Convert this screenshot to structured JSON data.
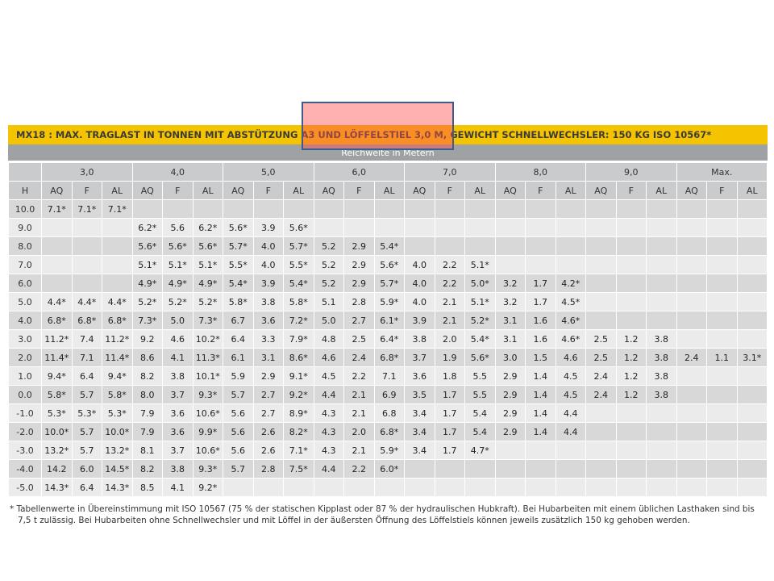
{
  "title": "MX18 : MAX. TRAGLAST IN TONNEN MIT ABSTÜTZUNG A3 UND LÖFFELSTIEL 3,0 M, GEWICHT SCHNELLWECHSLER: 150 KG ISO 10567*",
  "reach_label": "Reichweite in Metern",
  "reach_groups": [
    "3,0",
    "4,0",
    "5,0",
    "6,0",
    "7,0",
    "8,0",
    "9,0",
    "Max."
  ],
  "h_label": "H",
  "sub_columns": [
    "AQ",
    "F",
    "AL"
  ],
  "rows": [
    {
      "h": "10.0",
      "cells": [
        "7.1*",
        "7.1*",
        "7.1*",
        "",
        "",
        "",
        "",
        "",
        "",
        "",
        "",
        "",
        "",
        "",
        "",
        "",
        "",
        "",
        "",
        "",
        "",
        "",
        "",
        ""
      ]
    },
    {
      "h": "9.0",
      "cells": [
        "",
        "",
        "",
        "6.2*",
        "5.6",
        "6.2*",
        "5.6*",
        "3.9",
        "5.6*",
        "",
        "",
        "",
        "",
        "",
        "",
        "",
        "",
        "",
        "",
        "",
        "",
        "",
        "",
        ""
      ]
    },
    {
      "h": "8.0",
      "cells": [
        "",
        "",
        "",
        "5.6*",
        "5.6*",
        "5.6*",
        "5.7*",
        "4.0",
        "5.7*",
        "5.2",
        "2.9",
        "5.4*",
        "",
        "",
        "",
        "",
        "",
        "",
        "",
        "",
        "",
        "",
        "",
        ""
      ]
    },
    {
      "h": "7.0",
      "cells": [
        "",
        "",
        "",
        "5.1*",
        "5.1*",
        "5.1*",
        "5.5*",
        "4.0",
        "5.5*",
        "5.2",
        "2.9",
        "5.6*",
        "4.0",
        "2.2",
        "5.1*",
        "",
        "",
        "",
        "",
        "",
        "",
        "",
        "",
        ""
      ]
    },
    {
      "h": "6.0",
      "cells": [
        "",
        "",
        "",
        "4.9*",
        "4.9*",
        "4.9*",
        "5.4*",
        "3.9",
        "5.4*",
        "5.2",
        "2.9",
        "5.7*",
        "4.0",
        "2.2",
        "5.0*",
        "3.2",
        "1.7",
        "4.2*",
        "",
        "",
        "",
        "",
        "",
        ""
      ]
    },
    {
      "h": "5.0",
      "cells": [
        "4.4*",
        "4.4*",
        "4.4*",
        "5.2*",
        "5.2*",
        "5.2*",
        "5.8*",
        "3.8",
        "5.8*",
        "5.1",
        "2.8",
        "5.9*",
        "4.0",
        "2.1",
        "5.1*",
        "3.2",
        "1.7",
        "4.5*",
        "",
        "",
        "",
        "",
        "",
        ""
      ]
    },
    {
      "h": "4.0",
      "cells": [
        "6.8*",
        "6.8*",
        "6.8*",
        "7.3*",
        "5.0",
        "7.3*",
        "6.7",
        "3.6",
        "7.2*",
        "5.0",
        "2.7",
        "6.1*",
        "3.9",
        "2.1",
        "5.2*",
        "3.1",
        "1.6",
        "4.6*",
        "",
        "",
        "",
        "",
        "",
        ""
      ]
    },
    {
      "h": "3.0",
      "cells": [
        "11.2*",
        "7.4",
        "11.2*",
        "9.2",
        "4.6",
        "10.2*",
        "6.4",
        "3.3",
        "7.9*",
        "4.8",
        "2.5",
        "6.4*",
        "3.8",
        "2.0",
        "5.4*",
        "3.1",
        "1.6",
        "4.6*",
        "2.5",
        "1.2",
        "3.8",
        "",
        "",
        ""
      ]
    },
    {
      "h": "2.0",
      "cells": [
        "11.4*",
        "7.1",
        "11.4*",
        "8.6",
        "4.1",
        "11.3*",
        "6.1",
        "3.1",
        "8.6*",
        "4.6",
        "2.4",
        "6.8*",
        "3.7",
        "1.9",
        "5.6*",
        "3.0",
        "1.5",
        "4.6",
        "2.5",
        "1.2",
        "3.8",
        "2.4",
        "1.1",
        "3.1*"
      ]
    },
    {
      "h": "1.0",
      "cells": [
        "9.4*",
        "6.4",
        "9.4*",
        "8.2",
        "3.8",
        "10.1*",
        "5.9",
        "2.9",
        "9.1*",
        "4.5",
        "2.2",
        "7.1",
        "3.6",
        "1.8",
        "5.5",
        "2.9",
        "1.4",
        "4.5",
        "2.4",
        "1.2",
        "3.8",
        "",
        "",
        ""
      ]
    },
    {
      "h": "0.0",
      "cells": [
        "5.8*",
        "5.7",
        "5.8*",
        "8.0",
        "3.7",
        "9.3*",
        "5.7",
        "2.7",
        "9.2*",
        "4.4",
        "2.1",
        "6.9",
        "3.5",
        "1.7",
        "5.5",
        "2.9",
        "1.4",
        "4.5",
        "2.4",
        "1.2",
        "3.8",
        "",
        "",
        ""
      ]
    },
    {
      "h": "-1.0",
      "cells": [
        "5.3*",
        "5.3*",
        "5.3*",
        "7.9",
        "3.6",
        "10.6*",
        "5.6",
        "2.7",
        "8.9*",
        "4.3",
        "2.1",
        "6.8",
        "3.4",
        "1.7",
        "5.4",
        "2.9",
        "1.4",
        "4.4",
        "",
        "",
        "",
        "",
        "",
        ""
      ]
    },
    {
      "h": "-2.0",
      "cells": [
        "10.0*",
        "5.7",
        "10.0*",
        "7.9",
        "3.6",
        "9.9*",
        "5.6",
        "2.6",
        "8.2*",
        "4.3",
        "2.0",
        "6.8*",
        "3.4",
        "1.7",
        "5.4",
        "2.9",
        "1.4",
        "4.4",
        "",
        "",
        "",
        "",
        "",
        ""
      ]
    },
    {
      "h": "-3.0",
      "cells": [
        "13.2*",
        "5.7",
        "13.2*",
        "8.1",
        "3.7",
        "10.6*",
        "5.6",
        "2.6",
        "7.1*",
        "4.3",
        "2.1",
        "5.9*",
        "3.4",
        "1.7",
        "4.7*",
        "",
        "",
        "",
        "",
        "",
        "",
        "",
        "",
        ""
      ]
    },
    {
      "h": "-4.0",
      "cells": [
        "14.2",
        "6.0",
        "14.5*",
        "8.2",
        "3.8",
        "9.3*",
        "5.7",
        "2.8",
        "7.5*",
        "4.4",
        "2.2",
        "6.0*",
        "",
        "",
        "",
        "",
        "",
        "",
        "",
        "",
        "",
        "",
        "",
        ""
      ]
    },
    {
      "h": "-5.0",
      "cells": [
        "14.3*",
        "6.4",
        "14.3*",
        "8.5",
        "4.1",
        "9.2*",
        "",
        "",
        "",
        "",
        "",
        "",
        "",
        "",
        "",
        "",
        "",
        "",
        "",
        "",
        "",
        "",
        "",
        ""
      ]
    }
  ],
  "footnote_line1": "* Tabellenwerte in Übereinstimmung mit ISO 10567 (75 % der statischen Kipplast oder 87 % der hydraulischen Hubkraft). Bei Hubarbeiten mit einem üblichen Lasthaken sind bis",
  "footnote_line2": "7,5 t zulässig. Bei Hubarbeiten ohne Schnellwechsler und mit Löffel in der äußersten Öffnung des Löffelstiels können jeweils zusätzlich 150 kg gehoben werden.",
  "colors": {
    "title_bar": "#f5c400",
    "reach_bar": "#9fa2a4",
    "header_cell": "#c9cbcd",
    "row_dark": "#d8d8d8",
    "row_light": "#ebebeb",
    "highlight_fill": "#ff5050",
    "highlight_border": "#3f5b8c"
  }
}
